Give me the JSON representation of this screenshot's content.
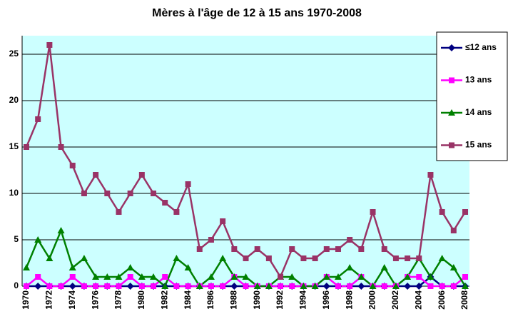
{
  "chart_data": {
    "type": "line",
    "title": "Mères à l'âge de 12 à 15 ans 1970-2008",
    "categories": [
      "1970",
      null,
      "1972",
      null,
      "1974",
      null,
      "1976",
      null,
      "1978",
      null,
      "1980",
      null,
      "1982",
      null,
      "1984",
      null,
      "1986",
      null,
      "1988",
      null,
      "1990",
      null,
      "1992",
      null,
      "1994",
      null,
      "1996",
      null,
      "1998",
      null,
      "2000",
      null,
      "2002",
      null,
      "2004",
      null,
      "2006",
      null,
      "2008"
    ],
    "series": [
      {
        "name": "≤12 ans",
        "color": "#000080",
        "marker": "diamond",
        "values": [
          0,
          0,
          0,
          0,
          0,
          0,
          0,
          0,
          0,
          0,
          0,
          0,
          0,
          0,
          0,
          0,
          0,
          0,
          0,
          0,
          0,
          0,
          0,
          0,
          0,
          0,
          0,
          0,
          0,
          0,
          0,
          0,
          0,
          0,
          0,
          1,
          0,
          0,
          0
        ]
      },
      {
        "name": "13 ans",
        "color": "#ff00ff",
        "marker": "square",
        "values": [
          0,
          1,
          0,
          0,
          1,
          0,
          0,
          0,
          0,
          1,
          0,
          0,
          1,
          0,
          0,
          0,
          0,
          0,
          1,
          0,
          0,
          0,
          0,
          0,
          0,
          0,
          1,
          0,
          0,
          1,
          0,
          0,
          0,
          1,
          1,
          0,
          0,
          0,
          1
        ]
      },
      {
        "name": "14 ans",
        "color": "#008000",
        "marker": "triangle",
        "values": [
          2,
          5,
          3,
          6,
          2,
          3,
          1,
          1,
          1,
          2,
          1,
          1,
          0,
          3,
          2,
          0,
          1,
          3,
          1,
          1,
          0,
          0,
          1,
          1,
          0,
          0,
          1,
          1,
          2,
          1,
          0,
          2,
          0,
          1,
          3,
          1,
          3,
          2,
          0
        ]
      },
      {
        "name": "15 ans",
        "color": "#993366",
        "marker": "square",
        "values": [
          15,
          18,
          26,
          15,
          13,
          10,
          12,
          10,
          8,
          10,
          12,
          10,
          9,
          8,
          11,
          4,
          5,
          7,
          4,
          3,
          4,
          3,
          1,
          4,
          3,
          3,
          4,
          4,
          5,
          4,
          8,
          4,
          3,
          3,
          3,
          12,
          8,
          6,
          8
        ]
      }
    ],
    "ylim": [
      0,
      27
    ],
    "yticks": [
      0,
      5,
      10,
      15,
      20,
      25
    ],
    "grid": true,
    "plot_background": "#ccffff",
    "legend": "top-right"
  }
}
